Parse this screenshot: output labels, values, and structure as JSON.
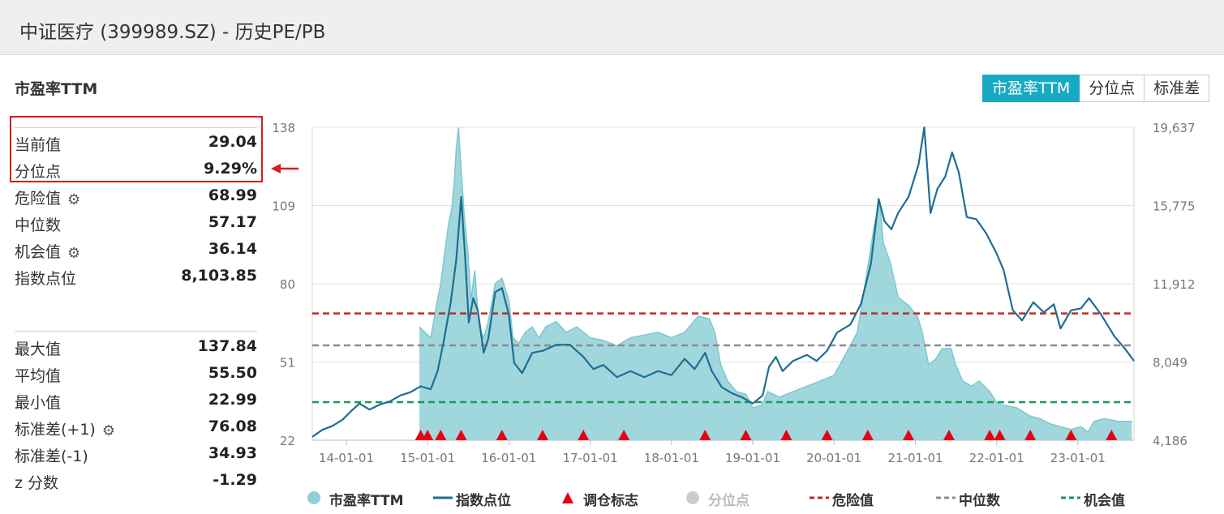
{
  "header": {
    "title": "中证医疗 (399989.SZ) - 历史PE/PB"
  },
  "panel": {
    "title": "市盈率TTM",
    "current": {
      "label": "当前值",
      "value": "29.04"
    },
    "percentile": {
      "label": "分位点",
      "value": "9.29%"
    },
    "danger": {
      "label": "危险值",
      "value": "68.99"
    },
    "median": {
      "label": "中位数",
      "value": "57.17"
    },
    "opportunity": {
      "label": "机会值",
      "value": "36.14"
    },
    "index_level": {
      "label": "指数点位",
      "value": "8,103.85"
    },
    "max": {
      "label": "最大值",
      "value": "137.84"
    },
    "mean": {
      "label": "平均值",
      "value": "55.50"
    },
    "min": {
      "label": "最小值",
      "value": "22.99"
    },
    "std_plus": {
      "label": "标准差(+1)",
      "value": "76.08"
    },
    "std_minus": {
      "label": "标准差(-1)",
      "value": "34.93"
    },
    "z_score": {
      "label": "z 分数",
      "value": "-1.29"
    }
  },
  "tabs": [
    {
      "label": "市盈率TTM",
      "active": true
    },
    {
      "label": "分位点",
      "active": false
    },
    {
      "label": "标准差",
      "active": false
    }
  ],
  "colors": {
    "pe_fill": "#8fd0d7",
    "pe_line": "#7fc7cf",
    "index_line": "#1e6e93",
    "marker": "#e60012",
    "danger": "#c0282a",
    "median": "#8c8c8c",
    "opportunity": "#1a9a57",
    "tab_active": "#1aa9c2"
  },
  "chart_data": {
    "type": "area",
    "left_axis": {
      "ticks": [
        "138",
        "109",
        "80",
        "51",
        "22"
      ],
      "ylim": [
        22,
        138
      ]
    },
    "right_axis": {
      "ticks": [
        "19,637",
        "15,775",
        "11,912",
        "8,049",
        "4,186"
      ],
      "ylim": [
        4186,
        19637
      ]
    },
    "x_ticks": [
      "14-01-01",
      "15-01-01",
      "16-01-01",
      "17-01-01",
      "18-01-01",
      "19-01-01",
      "20-01-01",
      "21-01-01",
      "22-01-01",
      "23-01-01"
    ],
    "xlim": [
      "2013-08-01",
      "2023-09-10"
    ],
    "reference_lines": {
      "danger": 68.99,
      "median": 57.17,
      "opportunity": 36.14
    },
    "series": [
      {
        "name": "市盈率TTM",
        "axis": "left",
        "points": [
          [
            "2014-11-25",
            64
          ],
          [
            "2014-12-20",
            62
          ],
          [
            "2015-01-15",
            60
          ],
          [
            "2015-02-10",
            72
          ],
          [
            "2015-03-01",
            80
          ],
          [
            "2015-03-20",
            92
          ],
          [
            "2015-04-05",
            102
          ],
          [
            "2015-04-20",
            108
          ],
          [
            "2015-05-01",
            118
          ],
          [
            "2015-05-10",
            130
          ],
          [
            "2015-05-20",
            137.84
          ],
          [
            "2015-06-01",
            122
          ],
          [
            "2015-06-15",
            105
          ],
          [
            "2015-07-01",
            92
          ],
          [
            "2015-07-15",
            74
          ],
          [
            "2015-08-01",
            85
          ],
          [
            "2015-08-20",
            64
          ],
          [
            "2015-09-10",
            60
          ],
          [
            "2015-10-01",
            66
          ],
          [
            "2015-11-01",
            80
          ],
          [
            "2015-12-01",
            82
          ],
          [
            "2016-01-01",
            74
          ],
          [
            "2016-01-20",
            60
          ],
          [
            "2016-02-15",
            58
          ],
          [
            "2016-03-15",
            62
          ],
          [
            "2016-04-15",
            64
          ],
          [
            "2016-05-15",
            60
          ],
          [
            "2016-06-15",
            64
          ],
          [
            "2016-08-01",
            66
          ],
          [
            "2016-09-15",
            62
          ],
          [
            "2016-11-01",
            64
          ],
          [
            "2017-01-01",
            60
          ],
          [
            "2017-03-01",
            59
          ],
          [
            "2017-05-01",
            57
          ],
          [
            "2017-07-01",
            60
          ],
          [
            "2017-09-01",
            61
          ],
          [
            "2017-11-01",
            62
          ],
          [
            "2018-01-01",
            60
          ],
          [
            "2018-03-01",
            62
          ],
          [
            "2018-05-01",
            68
          ],
          [
            "2018-06-20",
            67
          ],
          [
            "2018-07-15",
            62
          ],
          [
            "2018-08-10",
            50
          ],
          [
            "2018-09-10",
            44
          ],
          [
            "2018-10-20",
            40
          ],
          [
            "2018-12-01",
            39
          ],
          [
            "2019-01-01",
            34
          ],
          [
            "2019-02-10",
            35
          ],
          [
            "2019-03-10",
            40
          ],
          [
            "2019-05-01",
            38
          ],
          [
            "2019-07-01",
            40
          ],
          [
            "2019-09-01",
            42
          ],
          [
            "2019-11-01",
            44
          ],
          [
            "2020-01-01",
            46
          ],
          [
            "2020-03-01",
            55
          ],
          [
            "2020-04-15",
            62
          ],
          [
            "2020-05-20",
            80
          ],
          [
            "2020-07-01",
            102
          ],
          [
            "2020-07-25",
            110
          ],
          [
            "2020-08-10",
            95
          ],
          [
            "2020-09-10",
            88
          ],
          [
            "2020-10-15",
            75
          ],
          [
            "2020-12-01",
            72
          ],
          [
            "2021-01-10",
            68
          ],
          [
            "2021-02-01",
            62
          ],
          [
            "2021-03-01",
            50
          ],
          [
            "2021-04-01",
            52
          ],
          [
            "2021-05-01",
            56
          ],
          [
            "2021-06-10",
            56
          ],
          [
            "2021-07-01",
            50
          ],
          [
            "2021-08-01",
            44
          ],
          [
            "2021-09-10",
            42
          ],
          [
            "2021-10-15",
            44
          ],
          [
            "2021-12-01",
            40
          ],
          [
            "2022-01-01",
            36
          ],
          [
            "2022-02-01",
            35
          ],
          [
            "2022-04-01",
            34
          ],
          [
            "2022-06-01",
            31
          ],
          [
            "2022-07-15",
            30
          ],
          [
            "2022-09-01",
            28
          ],
          [
            "2022-10-15",
            27
          ],
          [
            "2022-12-01",
            26
          ],
          [
            "2023-01-15",
            27
          ],
          [
            "2023-02-15",
            25
          ],
          [
            "2023-03-15",
            29
          ],
          [
            "2023-05-01",
            30
          ],
          [
            "2023-07-01",
            29
          ],
          [
            "2023-09-01",
            29
          ]
        ]
      },
      {
        "name": "指数点位",
        "axis": "right",
        "points": [
          [
            "2013-08-01",
            4350
          ],
          [
            "2013-09-15",
            4700
          ],
          [
            "2013-11-01",
            4900
          ],
          [
            "2013-12-15",
            5200
          ],
          [
            "2014-01-20",
            5600
          ],
          [
            "2014-03-01",
            6000
          ],
          [
            "2014-04-15",
            5700
          ],
          [
            "2014-06-01",
            5950
          ],
          [
            "2014-07-15",
            6100
          ],
          [
            "2014-09-01",
            6400
          ],
          [
            "2014-10-15",
            6550
          ],
          [
            "2014-12-01",
            6850
          ],
          [
            "2015-01-15",
            6700
          ],
          [
            "2015-02-15",
            7600
          ],
          [
            "2015-03-15",
            9100
          ],
          [
            "2015-04-15",
            11000
          ],
          [
            "2015-05-10",
            13100
          ],
          [
            "2015-06-01",
            16200
          ],
          [
            "2015-06-20",
            13000
          ],
          [
            "2015-07-05",
            10000
          ],
          [
            "2015-07-25",
            11200
          ],
          [
            "2015-08-15",
            10600
          ],
          [
            "2015-09-10",
            8500
          ],
          [
            "2015-10-01",
            9200
          ],
          [
            "2015-11-01",
            11500
          ],
          [
            "2015-12-01",
            11700
          ],
          [
            "2016-01-01",
            10400
          ],
          [
            "2016-01-25",
            8000
          ],
          [
            "2016-03-01",
            7500
          ],
          [
            "2016-04-15",
            8500
          ],
          [
            "2016-06-01",
            8600
          ],
          [
            "2016-08-01",
            8900
          ],
          [
            "2016-10-01",
            8900
          ],
          [
            "2016-12-01",
            8300
          ],
          [
            "2017-01-15",
            7700
          ],
          [
            "2017-03-01",
            7900
          ],
          [
            "2017-05-01",
            7300
          ],
          [
            "2017-07-01",
            7600
          ],
          [
            "2017-09-01",
            7300
          ],
          [
            "2017-11-01",
            7600
          ],
          [
            "2018-01-01",
            7400
          ],
          [
            "2018-03-01",
            8200
          ],
          [
            "2018-04-15",
            7700
          ],
          [
            "2018-06-01",
            8500
          ],
          [
            "2018-07-01",
            7600
          ],
          [
            "2018-08-15",
            6800
          ],
          [
            "2018-10-01",
            6500
          ],
          [
            "2018-11-15",
            6300
          ],
          [
            "2019-01-01",
            6000
          ],
          [
            "2019-02-15",
            6400
          ],
          [
            "2019-03-15",
            7800
          ],
          [
            "2019-04-15",
            8300
          ],
          [
            "2019-05-15",
            7600
          ],
          [
            "2019-07-01",
            8100
          ],
          [
            "2019-09-01",
            8400
          ],
          [
            "2019-10-15",
            8100
          ],
          [
            "2019-12-01",
            8600
          ],
          [
            "2020-01-15",
            9500
          ],
          [
            "2020-03-15",
            9900
          ],
          [
            "2020-05-01",
            10900
          ],
          [
            "2020-06-15",
            12900
          ],
          [
            "2020-07-20",
            16100
          ],
          [
            "2020-08-15",
            15000
          ],
          [
            "2020-09-15",
            14600
          ],
          [
            "2020-10-15",
            15400
          ],
          [
            "2020-12-01",
            16200
          ],
          [
            "2021-01-15",
            17800
          ],
          [
            "2021-02-10",
            19637
          ],
          [
            "2021-03-10",
            15400
          ],
          [
            "2021-04-10",
            16600
          ],
          [
            "2021-05-15",
            17200
          ],
          [
            "2021-06-15",
            18400
          ],
          [
            "2021-07-15",
            17400
          ],
          [
            "2021-08-20",
            15200
          ],
          [
            "2021-10-01",
            15100
          ],
          [
            "2021-11-15",
            14400
          ],
          [
            "2022-01-01",
            13400
          ],
          [
            "2022-02-01",
            12600
          ],
          [
            "2022-03-15",
            10600
          ],
          [
            "2022-04-25",
            10100
          ],
          [
            "2022-06-15",
            11000
          ],
          [
            "2022-08-01",
            10500
          ],
          [
            "2022-09-15",
            10900
          ],
          [
            "2022-10-15",
            9700
          ],
          [
            "2022-12-01",
            10600
          ],
          [
            "2023-01-15",
            10700
          ],
          [
            "2023-02-20",
            11200
          ],
          [
            "2023-04-15",
            10400
          ],
          [
            "2023-06-15",
            9300
          ],
          [
            "2023-08-01",
            8700
          ],
          [
            "2023-09-10",
            8104
          ]
        ]
      }
    ],
    "rebalance_markers": [
      "2014-12-01",
      "2015-01-01",
      "2015-03-01",
      "2015-06-01",
      "2015-12-01",
      "2016-06-01",
      "2016-12-01",
      "2017-06-01",
      "2018-06-01",
      "2018-12-01",
      "2019-06-01",
      "2019-12-01",
      "2020-06-01",
      "2020-12-01",
      "2021-06-01",
      "2021-12-01",
      "2022-01-15",
      "2022-06-01",
      "2022-12-01",
      "2023-06-01"
    ],
    "legend": [
      {
        "label": "市盈率TTM",
        "symbol": "circle",
        "color": "#8fd0d7",
        "active": true
      },
      {
        "label": "指数点位",
        "symbol": "line",
        "color": "#1e6e93",
        "active": true
      },
      {
        "label": "调仓标志",
        "symbol": "triangle",
        "color": "#e60012",
        "active": true
      },
      {
        "label": "分位点",
        "symbol": "circle",
        "color": "#cccccc",
        "active": false
      },
      {
        "label": "危险值",
        "symbol": "dash",
        "color": "#c0282a",
        "active": true
      },
      {
        "label": "中位数",
        "symbol": "dash",
        "color": "#8c8c8c",
        "active": true
      },
      {
        "label": "机会值",
        "symbol": "dash",
        "color": "#1a9a57",
        "active": true
      }
    ]
  }
}
